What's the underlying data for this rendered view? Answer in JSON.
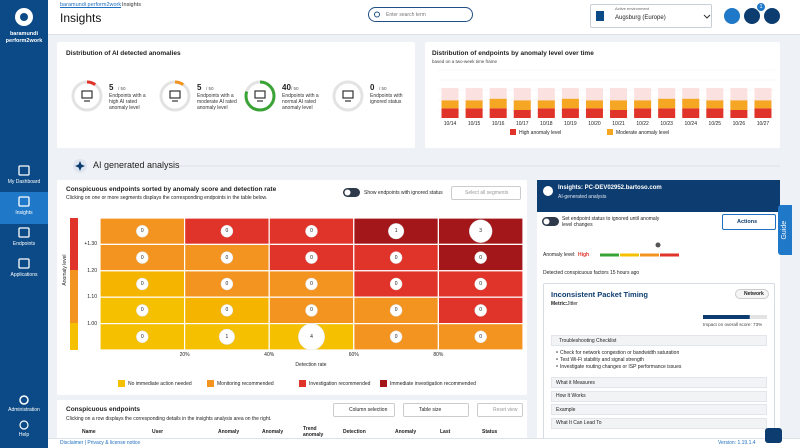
{
  "sidebar": {
    "logo": "baramundi perform2work",
    "nav": [
      "My Dashboard",
      "Insights",
      "Endpoints",
      "Applications"
    ],
    "administration": "Administration",
    "help": "Help"
  },
  "header": {
    "breadcrumb_link": "baramundi perform2work",
    "breadcrumb_current": "Insights",
    "title": "Insights",
    "search_placeholder": "Enter search term",
    "environment_label": "Active environment",
    "environment": "Augsburg (Europe)",
    "notification_count": "1"
  },
  "anomaly_distribution": {
    "title": "Distribution of AI detected anomalies",
    "items": [
      {
        "count": 5,
        "total": 50,
        "label": "Endpoints with a high AI rated anomaly level",
        "color": "#e0332a"
      },
      {
        "count": 5,
        "total": 50,
        "label": "Endpoints with a moderate AI rated anomaly level",
        "color": "#f49420"
      },
      {
        "count": 40,
        "total": 50,
        "label": "Endpoints with a normal AI rated anomaly level",
        "color": "#3aa335"
      },
      {
        "count": 0,
        "total": 50,
        "label": "Endpoints with ignored status",
        "color": "#888888"
      }
    ]
  },
  "chart_data": {
    "type": "bar",
    "stacked": true,
    "title": "Distribution of endpoints by anomaly level over time",
    "subtitle": "based on a two-week time frame",
    "categories": [
      "10/14",
      "10/15",
      "10/16",
      "10/17",
      "10/18",
      "10/19",
      "10/20",
      "10/21",
      "10/22",
      "10/23",
      "10/24",
      "10/25",
      "10/26",
      "10/27"
    ],
    "series": [
      {
        "name": "High anomaly level",
        "color": "#e0332a",
        "values": [
          6,
          6,
          6,
          5,
          6,
          6,
          6,
          5,
          6,
          6,
          6,
          6,
          5,
          6
        ]
      },
      {
        "name": "Moderate anomaly level",
        "color": "#f5a623",
        "values": [
          5,
          5,
          6,
          6,
          5,
          6,
          5,
          6,
          5,
          6,
          6,
          5,
          6,
          5
        ]
      }
    ]
  },
  "section_title": "AI generated analysis",
  "heatmap": {
    "title": "Conspicuous endpoints sorted by anomaly score and detection rate",
    "subtitle": "Clicking on one or more segments displays the corresponding endpoints in the table below.",
    "toggle_label": "Show endpoints with ignored status",
    "select_all": "Select all segments",
    "y_label": "Anomaly level",
    "x_label": "Detection rate",
    "y_ticks": [
      "+1.30",
      "1.20",
      "1.10",
      "1.00"
    ],
    "x_ticks": [
      "20%",
      "40%",
      "60%",
      "80%"
    ],
    "rows": [
      [
        {
          "count": 0,
          "color": "#f49420"
        },
        {
          "count": 0,
          "color": "#e0332a"
        },
        {
          "count": 0,
          "color": "#e0332a"
        },
        {
          "count": 1,
          "color": "#a3171b"
        },
        {
          "count": 3,
          "color": "#a3171b"
        }
      ],
      [
        {
          "count": 0,
          "color": "#f49420"
        },
        {
          "count": 0,
          "color": "#f49420"
        },
        {
          "count": 0,
          "color": "#e0332a"
        },
        {
          "count": 0,
          "color": "#e0332a"
        },
        {
          "count": 0,
          "color": "#a3171b"
        }
      ],
      [
        {
          "count": 0,
          "color": "#f5b400"
        },
        {
          "count": 0,
          "color": "#f49420"
        },
        {
          "count": 0,
          "color": "#f49420"
        },
        {
          "count": 0,
          "color": "#e0332a"
        },
        {
          "count": 0,
          "color": "#e0332a"
        }
      ],
      [
        {
          "count": 0,
          "color": "#f4c000"
        },
        {
          "count": 0,
          "color": "#f5b400"
        },
        {
          "count": 0,
          "color": "#f49420"
        },
        {
          "count": 0,
          "color": "#f49420"
        },
        {
          "count": 0,
          "color": "#e0332a"
        }
      ],
      [
        {
          "count": 0,
          "color": "#f4c000"
        },
        {
          "count": 1,
          "color": "#f4c000"
        },
        {
          "count": 4,
          "color": "#f4c000"
        },
        {
          "count": 0,
          "color": "#f49420"
        },
        {
          "count": 0,
          "color": "#f49420"
        }
      ]
    ],
    "legend": [
      {
        "label": "No immediate action needed",
        "color": "#f4c000"
      },
      {
        "label": "Monitoring recommended",
        "color": "#f49420"
      },
      {
        "label": "Investigation recommended",
        "color": "#e0332a"
      },
      {
        "label": "Immediate investigation recommended",
        "color": "#a3171b"
      }
    ]
  },
  "details": {
    "title": "Insights: PC-DEV02952.bartoso.com",
    "subtitle": "AI-generated analysis",
    "ignore_toggle": "Set endpoint status to ignored until anomaly level changes",
    "actions": "Actions",
    "anomaly_level_label": "Anomaly level:",
    "anomaly_level": "High",
    "detected": "Detected conspicuous factors 15 hours ago",
    "factor": {
      "title": "Inconsistent Packet Timing",
      "tag": "Network",
      "metric_label": "Metric:",
      "metric": "Jitter",
      "impact": 73,
      "impact_label": "Impact on overall score: 73%",
      "checklist_title": "Troubleshooting Checklist",
      "checklist": [
        "Check for network congestion or bandwidth saturation",
        "Test Wi-Fi stability and signal strength",
        "Investigate routing changes or ISP performance issues"
      ],
      "sections": [
        "What it Measures",
        "How It Works",
        "Example",
        "What It Can Lead To"
      ]
    },
    "guide": "Guide"
  },
  "endpoints_table": {
    "title": "Conspicuous endpoints",
    "subtitle": "Clicking on a row displays the corresponding details in the insights analysis area on the right.",
    "column_selection": "Column selection",
    "table_size": "Table size",
    "reset_view": "Reset view",
    "columns": [
      "Name",
      "User",
      "Anomaly",
      "Anomaly",
      "Trend anomaly",
      "Detection",
      "Anomaly",
      "Last",
      "Status"
    ]
  },
  "footer": {
    "links": "Disclaimer | Privacy & license notice",
    "version": "Version: 1.19.1.4"
  }
}
